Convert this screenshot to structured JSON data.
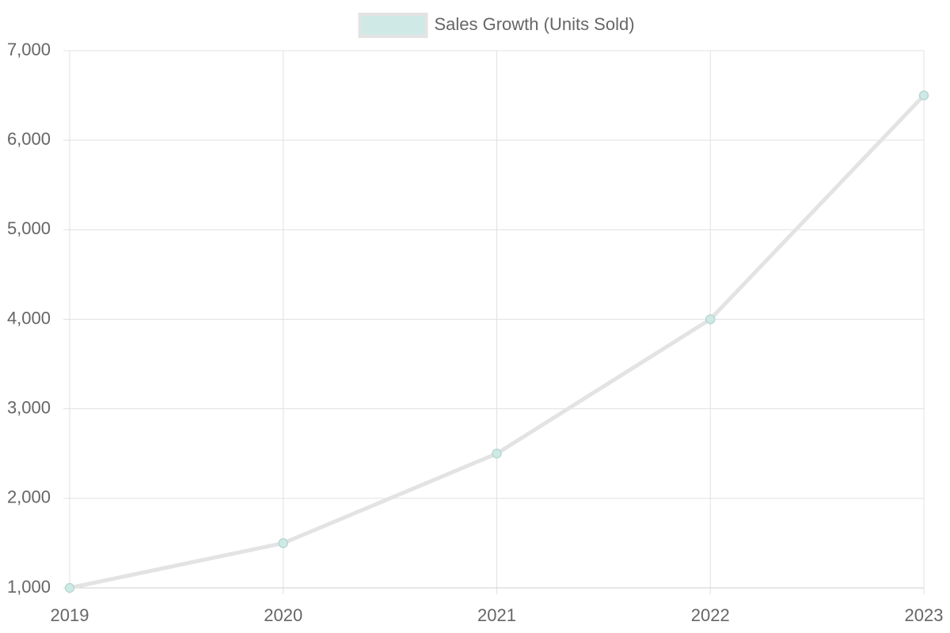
{
  "chart_data": {
    "type": "line",
    "categories": [
      "2019",
      "2020",
      "2021",
      "2022",
      "2023"
    ],
    "series": [
      {
        "name": "Sales Growth (Units Sold)",
        "color": "#e3e3e3",
        "point_color": "#cfeae6",
        "values": [
          1000,
          1500,
          2500,
          4000,
          6500
        ]
      }
    ],
    "ylim": [
      1000,
      7000
    ],
    "yticks": [
      {
        "value": 1000,
        "label": "1,000"
      },
      {
        "value": 2000,
        "label": "2,000"
      },
      {
        "value": 3000,
        "label": "3,000"
      },
      {
        "value": 4000,
        "label": "4,000"
      },
      {
        "value": 5000,
        "label": "5,000"
      },
      {
        "value": 6000,
        "label": "6,000"
      },
      {
        "value": 7000,
        "label": "7,000"
      }
    ],
    "grid": true,
    "legend": "top"
  }
}
